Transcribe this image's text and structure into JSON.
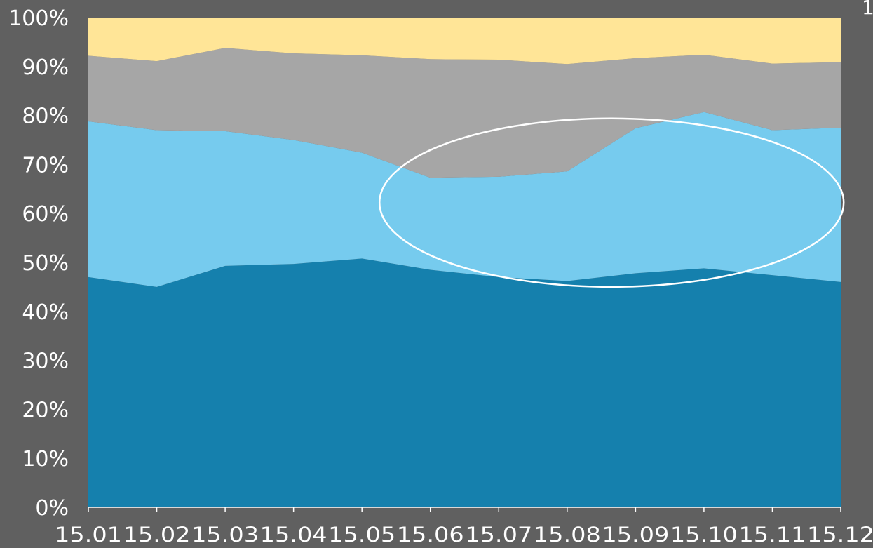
{
  "chart_data": {
    "type": "area",
    "stacked": "percent",
    "categories": [
      "15.01",
      "15.02",
      "15.03",
      "15.04",
      "15.05",
      "15.06",
      "15.07",
      "15.08",
      "15.09",
      "15.10",
      "15.11",
      "15.12"
    ],
    "series": [
      {
        "color": "#1580AD",
        "values": [
          47,
          45,
          49.3,
          49.7,
          50.8,
          48.5,
          47,
          46.2,
          47.8,
          48.8,
          47.4,
          46
        ]
      },
      {
        "color": "#76CBEE",
        "values": [
          31.8,
          32,
          27.5,
          25.3,
          21.6,
          18.8,
          20.5,
          22.4,
          29.6,
          31.9,
          29.6,
          31.5
        ]
      },
      {
        "color": "#A6A6A6",
        "values": [
          13.4,
          14.1,
          17,
          17.7,
          19.9,
          24.2,
          23.9,
          21.9,
          14.3,
          11.7,
          13.6,
          13.4
        ]
      },
      {
        "color": "#FFE597",
        "values": [
          7.8,
          8.9,
          6.2,
          7.3,
          7.7,
          8.5,
          8.6,
          9.5,
          8.3,
          7.6,
          9.4,
          9.1
        ]
      }
    ],
    "yticks": [
      "0%",
      "10%",
      "20%",
      "30%",
      "40%",
      "50%",
      "60%",
      "70%",
      "80%",
      "90%",
      "100%"
    ],
    "ylim": [
      0,
      100
    ],
    "annotation": {
      "shape": "ellipse",
      "color": "#ffffff"
    },
    "corner_text": "1"
  }
}
